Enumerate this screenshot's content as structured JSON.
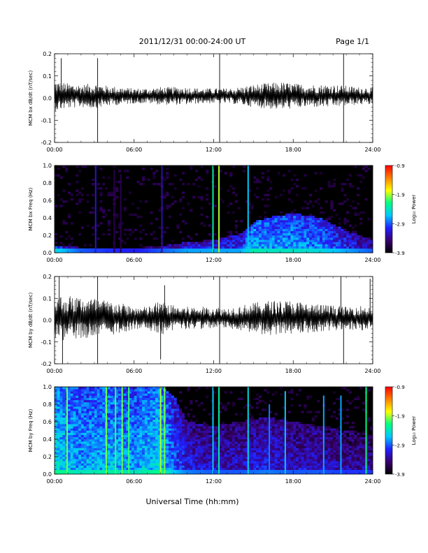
{
  "header": {
    "date_range": "2011/12/31  00:00-24:00 UT",
    "page": "Page 1/1"
  },
  "x_axis": {
    "label": "Universal Time (hh:mm)",
    "range_hours": [
      0,
      24
    ],
    "tick_hours": [
      0,
      6,
      12,
      18,
      24
    ],
    "tick_labels": [
      "00:00",
      "06:00",
      "12:00",
      "18:00",
      "24:00"
    ]
  },
  "colorbar": {
    "label": "Log₁₀ Power",
    "range": [
      -3.9,
      -0.9
    ],
    "tick_values": [
      -0.9,
      -1.9,
      -2.9,
      -3.9
    ],
    "tick_labels": [
      "-0.9",
      "-1.9",
      "-2.9",
      "-3.9"
    ],
    "colors": [
      "#000000",
      "#3a0070",
      "#2020ff",
      "#00c8ff",
      "#00ff80",
      "#ffff00",
      "#ff8000",
      "#ff0000"
    ]
  },
  "chart_data": [
    {
      "type": "line",
      "ylabel": "MCM bx dB/dt (nT/sec)",
      "ylim": [
        -0.2,
        0.2
      ],
      "y_tick_values": [
        0.2,
        0.1,
        0.0,
        -0.1,
        -0.2
      ],
      "y_tick_labels": [
        "0.2",
        "0.1",
        "0.0",
        "-0.1",
        "-0.2"
      ],
      "series": [
        {
          "color": "#000000",
          "x_hours": [
            0,
            1,
            2,
            3,
            4,
            5,
            6,
            7,
            8,
            9,
            10,
            11,
            12,
            13,
            14,
            15,
            16,
            17,
            18,
            19,
            20,
            21,
            22,
            23,
            24
          ],
          "amplitude": [
            0.06,
            0.05,
            0.045,
            0.05,
            0.04,
            0.035,
            0.03,
            0.03,
            0.035,
            0.035,
            0.035,
            0.03,
            0.03,
            0.03,
            0.035,
            0.045,
            0.05,
            0.055,
            0.05,
            0.045,
            0.045,
            0.045,
            0.04,
            0.035,
            0.035
          ],
          "spikes": [
            {
              "x_hours": 0.5,
              "y": 0.18
            },
            {
              "x_hours": 3.25,
              "y": 0.18
            },
            {
              "x_hours": 3.25,
              "y": -0.2
            },
            {
              "x_hours": 12.45,
              "y": 0.2
            },
            {
              "x_hours": 12.45,
              "y": -0.2
            },
            {
              "x_hours": 21.8,
              "y": 0.2
            },
            {
              "x_hours": 21.8,
              "y": -0.2
            }
          ]
        }
      ]
    },
    {
      "type": "heatmap",
      "ylabel": "MCM bx Freq (Hz)",
      "ylim": [
        0.0,
        1.0
      ],
      "y_tick_values": [
        1.0,
        0.8,
        0.6,
        0.4,
        0.2,
        0.0
      ],
      "y_tick_labels": [
        "1.0",
        "0.8",
        "0.6",
        "0.4",
        "0.2",
        "0.0"
      ],
      "colorbar_range": [
        -3.9,
        -0.9
      ],
      "profile_hours": [
        0,
        2,
        4,
        6,
        8,
        10,
        12,
        14,
        15,
        16,
        18,
        20,
        22,
        24
      ],
      "activity_top_freq_hz": [
        0.08,
        0.06,
        0.05,
        0.05,
        0.08,
        0.12,
        0.15,
        0.22,
        0.35,
        0.4,
        0.45,
        0.4,
        0.25,
        0.15
      ],
      "activity_level_log_power": [
        -2.8,
        -3.2,
        -3.3,
        -3.4,
        -3.2,
        -3.0,
        -3.0,
        -3.0,
        -2.6,
        -2.7,
        -2.7,
        -2.8,
        -3.0,
        -3.2
      ],
      "vertical_features": [
        {
          "x_hours": 3.1,
          "top_hz": 1.0,
          "log_power": -3.2
        },
        {
          "x_hours": 4.5,
          "top_hz": 0.95,
          "log_power": -3.6
        },
        {
          "x_hours": 5.0,
          "top_hz": 0.9,
          "log_power": -3.6
        },
        {
          "x_hours": 8.1,
          "top_hz": 1.0,
          "log_power": -3.3
        },
        {
          "x_hours": 11.95,
          "top_hz": 1.0,
          "log_power": -2.3
        },
        {
          "x_hours": 12.4,
          "top_hz": 1.0,
          "log_power": -1.9
        },
        {
          "x_hours": 14.6,
          "top_hz": 1.0,
          "log_power": -2.6
        }
      ]
    },
    {
      "type": "line",
      "ylabel": "MCM by dB/dt (nT/sec)",
      "ylim": [
        -0.2,
        0.2
      ],
      "y_tick_values": [
        0.2,
        0.1,
        0.0,
        -0.1,
        -0.2
      ],
      "y_tick_labels": [
        "0.2",
        "0.1",
        "0.0",
        "-0.1",
        "-0.2"
      ],
      "series": [
        {
          "color": "#000000",
          "x_hours": [
            0,
            1,
            2,
            3,
            4,
            5,
            6,
            7,
            8,
            9,
            10,
            11,
            12,
            13,
            14,
            15,
            16,
            17,
            18,
            19,
            20,
            21,
            22,
            23,
            24
          ],
          "amplitude": [
            0.09,
            0.09,
            0.085,
            0.08,
            0.07,
            0.06,
            0.045,
            0.045,
            0.07,
            0.05,
            0.045,
            0.045,
            0.045,
            0.04,
            0.05,
            0.06,
            0.07,
            0.07,
            0.07,
            0.06,
            0.055,
            0.05,
            0.045,
            0.05,
            0.045
          ],
          "spikes": [
            {
              "x_hours": 0.35,
              "y": 0.2
            },
            {
              "x_hours": 0.6,
              "y": -0.2
            },
            {
              "x_hours": 3.25,
              "y": 0.2
            },
            {
              "x_hours": 3.25,
              "y": -0.2
            },
            {
              "x_hours": 8.0,
              "y": -0.18
            },
            {
              "x_hours": 8.3,
              "y": 0.16
            },
            {
              "x_hours": 12.45,
              "y": 0.2
            },
            {
              "x_hours": 12.45,
              "y": -0.2
            },
            {
              "x_hours": 21.6,
              "y": 0.2
            },
            {
              "x_hours": 21.8,
              "y": -0.2
            },
            {
              "x_hours": 23.8,
              "y": 0.19
            }
          ]
        }
      ]
    },
    {
      "type": "heatmap",
      "ylabel": "MCM by Freq (Hz)",
      "ylim": [
        0.0,
        1.0
      ],
      "y_tick_values": [
        1.0,
        0.8,
        0.6,
        0.4,
        0.2,
        0.0
      ],
      "y_tick_labels": [
        "1.0",
        "0.8",
        "0.6",
        "0.4",
        "0.2",
        "0.0"
      ],
      "colorbar_range": [
        -3.9,
        -0.9
      ],
      "profile_hours": [
        0,
        2,
        4,
        6,
        8,
        9,
        10,
        12,
        14,
        16,
        18,
        20,
        22,
        24
      ],
      "activity_top_freq_hz": [
        1.0,
        1.0,
        1.0,
        1.0,
        1.0,
        0.9,
        0.6,
        0.55,
        0.6,
        0.65,
        0.6,
        0.55,
        0.5,
        0.45
      ],
      "activity_level_log_power": [
        -2.5,
        -2.7,
        -2.6,
        -2.7,
        -2.5,
        -2.9,
        -3.1,
        -3.2,
        -3.2,
        -3.1,
        -3.2,
        -3.2,
        -3.3,
        -3.3
      ],
      "vertical_features": [
        {
          "x_hours": 0.95,
          "top_hz": 1.0,
          "log_power": -2.0
        },
        {
          "x_hours": 3.9,
          "top_hz": 1.0,
          "log_power": -2.0
        },
        {
          "x_hours": 4.6,
          "top_hz": 1.0,
          "log_power": -2.1
        },
        {
          "x_hours": 5.1,
          "top_hz": 1.0,
          "log_power": -2.0
        },
        {
          "x_hours": 5.6,
          "top_hz": 1.0,
          "log_power": -2.1
        },
        {
          "x_hours": 8.0,
          "top_hz": 1.0,
          "log_power": -1.9
        },
        {
          "x_hours": 8.3,
          "top_hz": 1.0,
          "log_power": -2.0
        },
        {
          "x_hours": 11.95,
          "top_hz": 1.0,
          "log_power": -2.6
        },
        {
          "x_hours": 12.4,
          "top_hz": 1.0,
          "log_power": -2.3
        },
        {
          "x_hours": 14.6,
          "top_hz": 1.0,
          "log_power": -2.5
        },
        {
          "x_hours": 16.2,
          "top_hz": 0.8,
          "log_power": -2.8
        },
        {
          "x_hours": 17.4,
          "top_hz": 0.95,
          "log_power": -2.6
        },
        {
          "x_hours": 20.3,
          "top_hz": 0.9,
          "log_power": -2.7
        },
        {
          "x_hours": 21.6,
          "top_hz": 0.9,
          "log_power": -2.7
        },
        {
          "x_hours": 23.5,
          "top_hz": 1.0,
          "log_power": -2.2
        }
      ]
    }
  ]
}
